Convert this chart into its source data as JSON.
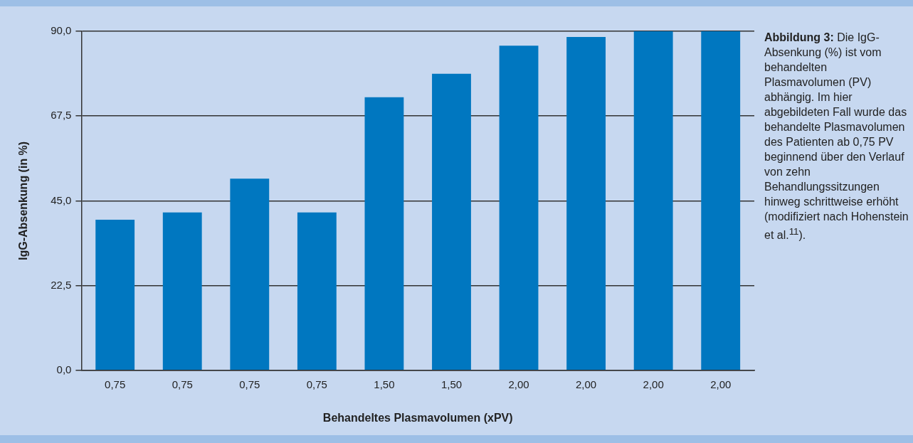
{
  "chart_data": {
    "type": "bar",
    "title": "Abbildung 3:",
    "xlabel": "Behandeltes Plasmavolumen (xPV)",
    "ylabel": "IgG-Absenkung (in %)",
    "categories": [
      "0,75",
      "0,75",
      "0,75",
      "0,75",
      "1,50",
      "1,50",
      "2,00",
      "2,00",
      "2,00",
      "2,00"
    ],
    "values": [
      40.0,
      41.9,
      50.9,
      41.9,
      72.5,
      78.7,
      86.2,
      88.5,
      90.0,
      90.0
    ],
    "color": "#0077c0",
    "ylim": [
      0,
      90
    ],
    "yticks": [
      {
        "value": 0,
        "label": "0,0"
      },
      {
        "value": 22.5,
        "label": "22,5"
      },
      {
        "value": 45,
        "label": "45,0"
      },
      {
        "value": 67.5,
        "label": "67,5"
      },
      {
        "value": 90,
        "label": "90,0"
      }
    ],
    "grid": "y",
    "legend": false,
    "annotations": [
      "Die IgG-Absenkung (%) ist vom behandelten Plasmavolumen (PV) abhängig. Im hier abgebildeten Fall wurde das behandelte Plasmavolumen des Patienten ab 0,75 PV beginnend über den Verlauf von zehn Behandlungssitzungen hinweg schrittweise erhöht (modifiziert nach Hohenstein et al.$^{11}$)."
    ]
  }
}
